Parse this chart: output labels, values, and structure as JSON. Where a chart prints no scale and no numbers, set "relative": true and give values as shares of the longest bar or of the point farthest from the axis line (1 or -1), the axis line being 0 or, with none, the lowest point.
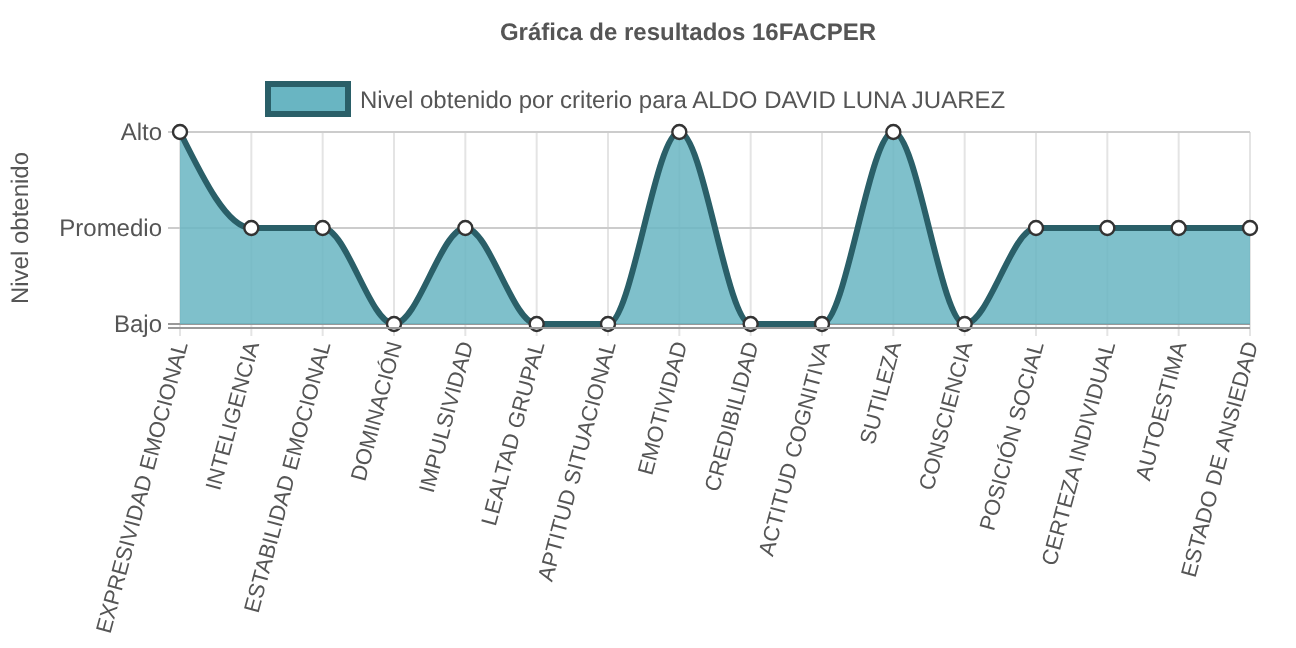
{
  "chart_data": {
    "type": "area",
    "title": "Gráfica de resultados 16FACPER",
    "ylabel": "Nivel obtenido",
    "categories": [
      "EXPRESIVIDAD EMOCIONAL",
      "INTELIGENCIA",
      "ESTABILIDAD EMOCIONAL",
      "DOMINACIÓN",
      "IMPULSIVIDAD",
      "LEALTAD GRUPAL",
      "APTITUD SITUACIONAL",
      "EMOTIVIDAD",
      "CREDIBILIDAD",
      "ACTITUD COGNITIVA",
      "SUTILEZA",
      "CONSCIENCIA",
      "POSICIÓN SOCIAL",
      "CERTEZA INDIVIDUAL",
      "AUTOESTIMA",
      "ESTADO DE ANSIEDAD"
    ],
    "series": [
      {
        "name": "Nivel obtenido por criterio para ALDO DAVID LUNA JUAREZ",
        "color": "#2a5f68",
        "values": [
          1,
          0.5,
          0.5,
          0,
          0.5,
          0,
          0,
          1,
          0,
          0,
          1,
          0,
          0.5,
          0.5,
          0.5,
          0.5
        ]
      }
    ],
    "relative": true,
    "ref_lines": [
      {
        "axis": "y",
        "value": 1,
        "label": "Alto",
        "color": "#cccccc"
      },
      {
        "axis": "y",
        "value": 0.5,
        "label": "Promedio",
        "color": "#cccccc"
      },
      {
        "axis": "y",
        "value": 0,
        "label": "Bajo",
        "color": "#999999"
      }
    ],
    "grid": true,
    "legend": "top",
    "marker": "circle"
  }
}
